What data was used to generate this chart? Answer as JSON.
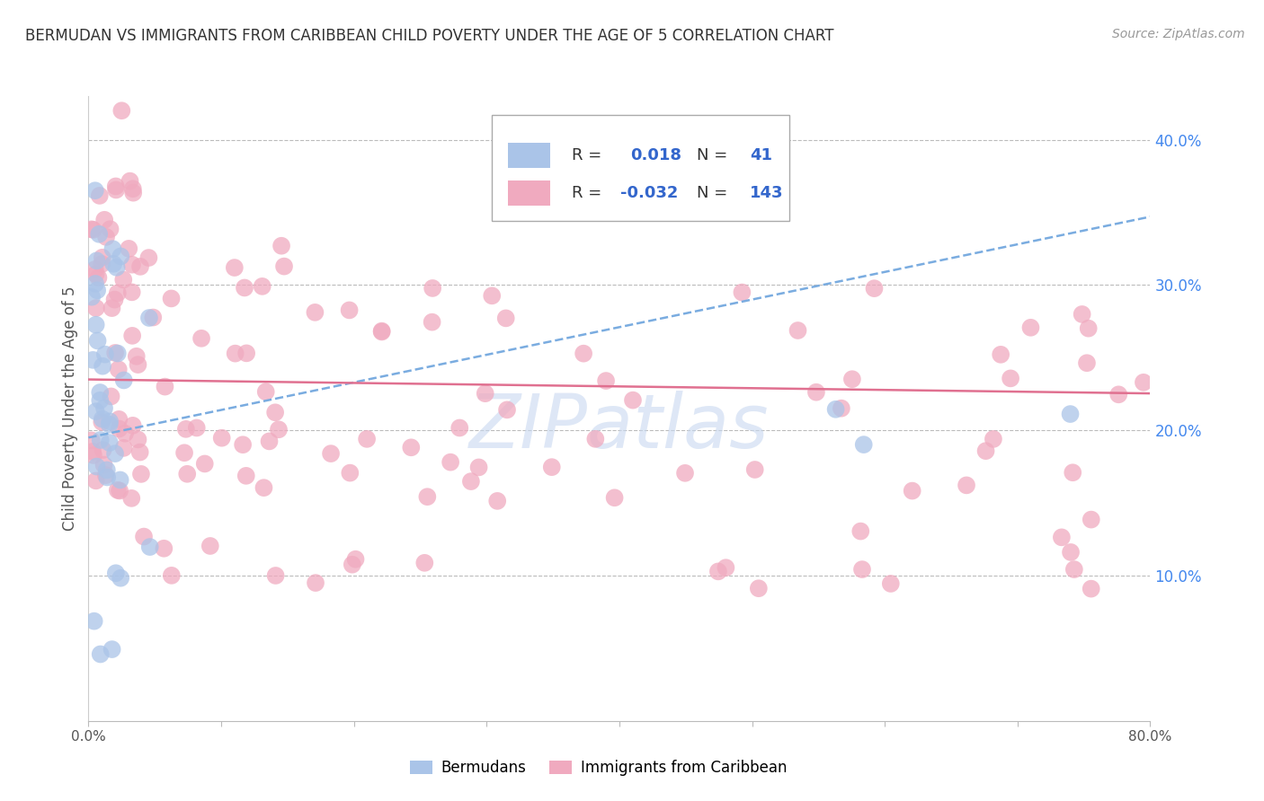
{
  "title": "BERMUDAN VS IMMIGRANTS FROM CARIBBEAN CHILD POVERTY UNDER THE AGE OF 5 CORRELATION CHART",
  "source": "Source: ZipAtlas.com",
  "ylabel": "Child Poverty Under the Age of 5",
  "xlim": [
    0.0,
    0.8
  ],
  "ylim": [
    0.0,
    0.43
  ],
  "bermudans_R": 0.018,
  "bermudans_N": 41,
  "caribbean_R": -0.032,
  "caribbean_N": 143,
  "bermuda_color": "#aac4e8",
  "caribbean_color": "#f0aabf",
  "bermuda_line_color": "#7aace0",
  "caribbean_line_color": "#e07090",
  "background_color": "#ffffff",
  "grid_color": "#bbbbbb",
  "title_color": "#333333",
  "right_axis_color": "#4488ee",
  "watermark_color": "#c8d8f0",
  "watermark_text": "ZIPatlas",
  "legend_text_color": "#333333",
  "legend_value_color": "#3366cc",
  "legend_border_color": "#aaaaaa"
}
